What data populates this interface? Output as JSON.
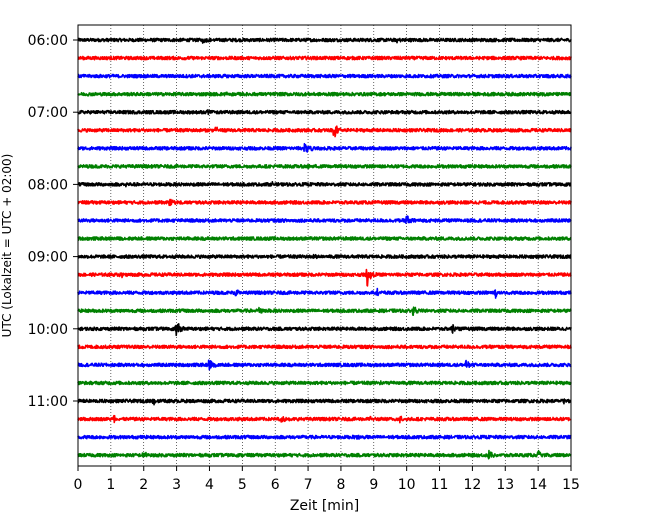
{
  "chart_data": {
    "type": "line",
    "title": "",
    "xlabel": "Zeit  [min]",
    "ylabel": "UTC (Lokalzeit = UTC + 02:00)",
    "xlim": [
      0,
      15
    ],
    "x_ticks": [
      "0",
      "1",
      "2",
      "3",
      "4",
      "5",
      "6",
      "7",
      "8",
      "9",
      "10",
      "11",
      "12",
      "13",
      "14",
      "15"
    ],
    "y_start_minutes": 360,
    "trace_interval_minutes": 15,
    "y_tick_labels": [
      "06:00",
      "07:00",
      "08:00",
      "09:00",
      "10:00",
      "11:00"
    ],
    "grid": "vertical dotted",
    "colors": [
      "#000000",
      "#ff0000",
      "#0000ff",
      "#008000"
    ],
    "noise_amplitude": 0.18,
    "series": [
      {
        "start": "06:00",
        "color": "#000000",
        "events": [
          {
            "t": 3.8,
            "amp": 0.3
          },
          {
            "t": 9.7,
            "amp": 0.25
          }
        ]
      },
      {
        "start": "06:15",
        "color": "#ff0000",
        "events": []
      },
      {
        "start": "06:30",
        "color": "#0000ff",
        "events": []
      },
      {
        "start": "06:45",
        "color": "#008000",
        "events": [
          {
            "t": 4.5,
            "amp": 0.2
          },
          {
            "t": 13.9,
            "amp": 0.2
          }
        ]
      },
      {
        "start": "07:00",
        "color": "#000000",
        "events": [
          {
            "t": 3.9,
            "amp": 0.3
          }
        ]
      },
      {
        "start": "07:15",
        "color": "#ff0000",
        "events": [
          {
            "t": 4.2,
            "amp": 0.35
          },
          {
            "t": 7.8,
            "amp": 1.2
          }
        ]
      },
      {
        "start": "07:30",
        "color": "#0000ff",
        "events": [
          {
            "t": 6.9,
            "amp": 0.75
          },
          {
            "t": 7.1,
            "amp": 0.5
          }
        ]
      },
      {
        "start": "07:45",
        "color": "#008000",
        "events": [
          {
            "t": 7.0,
            "amp": 0.3
          }
        ]
      },
      {
        "start": "08:00",
        "color": "#000000",
        "events": [
          {
            "t": 1.4,
            "amp": 0.25
          },
          {
            "t": 5.9,
            "amp": 0.25
          }
        ]
      },
      {
        "start": "08:15",
        "color": "#ff0000",
        "events": [
          {
            "t": 2.8,
            "amp": 0.35
          }
        ]
      },
      {
        "start": "08:30",
        "color": "#0000ff",
        "events": [
          {
            "t": 10.0,
            "amp": 0.8
          }
        ]
      },
      {
        "start": "08:45",
        "color": "#008000",
        "events": []
      },
      {
        "start": "09:00",
        "color": "#000000",
        "events": [
          {
            "t": 7.2,
            "amp": 0.3
          }
        ]
      },
      {
        "start": "09:15",
        "color": "#ff0000",
        "events": [
          {
            "t": 1.3,
            "amp": 0.35
          },
          {
            "t": 8.8,
            "amp": 1.3
          }
        ]
      },
      {
        "start": "09:30",
        "color": "#0000ff",
        "events": [
          {
            "t": 4.8,
            "amp": 0.4
          },
          {
            "t": 9.1,
            "amp": 0.35
          },
          {
            "t": 12.7,
            "amp": 0.8
          }
        ]
      },
      {
        "start": "09:45",
        "color": "#008000",
        "events": [
          {
            "t": 5.5,
            "amp": 0.3
          },
          {
            "t": 10.2,
            "amp": 0.55
          }
        ]
      },
      {
        "start": "10:00",
        "color": "#000000",
        "events": [
          {
            "t": 3.0,
            "amp": 1.1
          },
          {
            "t": 11.4,
            "amp": 0.5
          }
        ]
      },
      {
        "start": "10:15",
        "color": "#ff0000",
        "events": []
      },
      {
        "start": "10:30",
        "color": "#0000ff",
        "events": [
          {
            "t": 4.0,
            "amp": 1.0
          },
          {
            "t": 11.8,
            "amp": 0.6
          }
        ]
      },
      {
        "start": "10:45",
        "color": "#008000",
        "events": [
          {
            "t": 9.2,
            "amp": 0.3
          }
        ]
      },
      {
        "start": "11:00",
        "color": "#000000",
        "events": [
          {
            "t": 2.3,
            "amp": 0.45
          },
          {
            "t": 14.8,
            "amp": 0.3
          }
        ]
      },
      {
        "start": "11:15",
        "color": "#ff0000",
        "events": [
          {
            "t": 1.1,
            "amp": 0.45
          },
          {
            "t": 6.2,
            "amp": 0.3
          },
          {
            "t": 8.9,
            "amp": 0.3
          },
          {
            "t": 9.8,
            "amp": 0.4
          }
        ]
      },
      {
        "start": "11:30",
        "color": "#0000ff",
        "events": [
          {
            "t": 8.5,
            "amp": 0.3
          }
        ]
      },
      {
        "start": "11:45",
        "color": "#008000",
        "events": [
          {
            "t": 2.0,
            "amp": 0.5
          },
          {
            "t": 12.5,
            "amp": 0.45
          },
          {
            "t": 14.0,
            "amp": 0.4
          }
        ]
      }
    ]
  }
}
